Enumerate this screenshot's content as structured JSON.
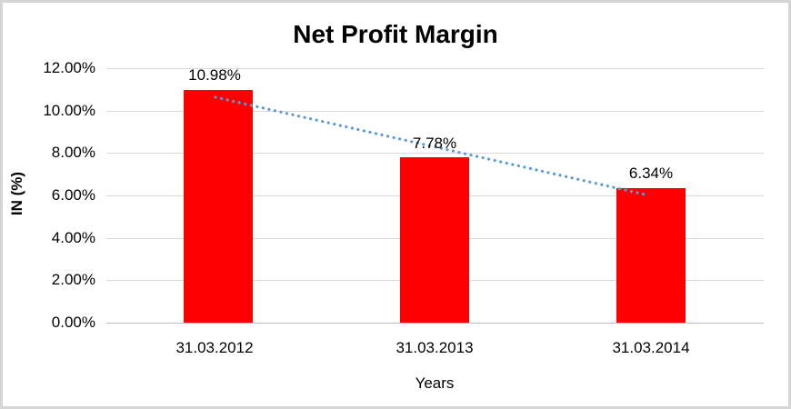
{
  "chart_data": {
    "type": "bar",
    "title": "Net Profit Margin",
    "xlabel": "Years",
    "ylabel": "IN (%)",
    "categories": [
      "31.03.2012",
      "31.03.2013",
      "31.03.2014"
    ],
    "values": [
      10.98,
      7.78,
      6.34
    ],
    "data_labels": [
      "10.98%",
      "7.78%",
      "6.34%"
    ],
    "yticks": [
      "12.00%",
      "10.00%",
      "8.00%",
      "6.00%",
      "4.00%",
      "2.00%",
      "0.00%"
    ],
    "ylim": [
      0,
      12
    ],
    "grid": true,
    "legend": "none",
    "bar_color": "#ff0000",
    "gridline_color": "#d9d9d9",
    "trendline": {
      "type": "linear",
      "style": "dotted",
      "color": "#5b9bd5",
      "start_value": 10.69,
      "end_value": 6.05
    }
  }
}
